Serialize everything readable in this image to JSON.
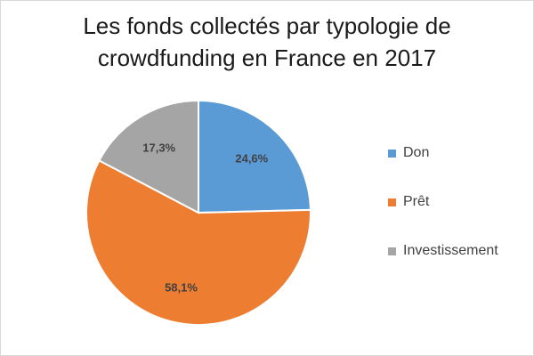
{
  "chart_data": {
    "type": "pie",
    "title": "Les fonds collectés par typologie de crowdfunding en France en 2017",
    "title_lines": [
      "Les fonds collectés par typologie de",
      "crowdfunding en France en 2017"
    ],
    "legend_position": "right",
    "slices": [
      {
        "label": "Don",
        "value": 24.6,
        "display": "24,6%",
        "color": "#5b9bd5"
      },
      {
        "label": "Prêt",
        "value": 58.1,
        "display": "58,1%",
        "color": "#ed7d31"
      },
      {
        "label": "Investissement",
        "value": 17.3,
        "display": "17,3%",
        "color": "#a5a5a5"
      }
    ]
  }
}
